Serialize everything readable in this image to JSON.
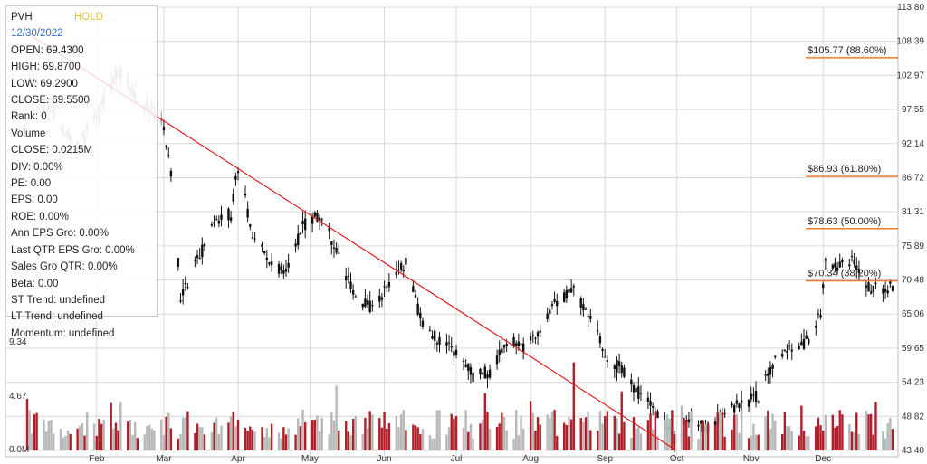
{
  "info_panel": {
    "ticker": "PVH",
    "rating": "HOLD",
    "date": "12/30/2022",
    "lines": [
      "OPEN: 69.4300",
      "HIGH: 69.8700",
      "LOW: 69.2900",
      "CLOSE: 69.5500",
      "Rank: 0",
      "Volume",
      "CLOSE: 0.0215M",
      "DIV: 0.00%",
      "PE: 0.00",
      "EPS: 0.00",
      "ROE: 0.00%",
      "Ann EPS Gro: 0.00%",
      "Last QTR EPS Gro: 0.00%",
      "Sales Gro QTR: 0.00%",
      "Beta: 0.00",
      "ST Trend: undefined",
      "LT Trend: undefined",
      "Momentum: undefined"
    ]
  },
  "chart_data": {
    "type": "candlestick",
    "title": "",
    "x_range": [
      "2022-01-03",
      "2022-12-30"
    ],
    "price_axis": {
      "ticks": [
        113.8,
        108.39,
        102.97,
        97.55,
        92.14,
        86.72,
        81.31,
        75.89,
        70.48,
        65.06,
        59.65,
        54.23,
        48.82,
        43.4
      ],
      "tick_labels": [
        "113.80",
        "108.39",
        "102.97",
        "97.55",
        "92.14",
        "86.72",
        "81.31",
        "75.89",
        "70.48",
        "65.06",
        "59.65",
        "54.23",
        "48.82",
        "43.40"
      ],
      "range": [
        43.4,
        113.8
      ]
    },
    "volume_axis": {
      "ticks": [
        0.0,
        4.67,
        9.34
      ],
      "tick_labels": [
        "0.0M",
        "4.67",
        "9.34"
      ],
      "unit": "M"
    },
    "month_labels": [
      "Feb",
      "Mar",
      "Apr",
      "May",
      "Jun",
      "Jul",
      "Aug",
      "Sep",
      "Oct",
      "Nov",
      "Dec"
    ],
    "fibonacci_levels": [
      {
        "price": 105.77,
        "label": "$105.77 (88.60%)",
        "color": "#f07a2e"
      },
      {
        "price": 86.93,
        "label": "$86.93 (61.80%)",
        "color": "#f07a2e"
      },
      {
        "price": 78.63,
        "label": "$78.63 (50.00%)",
        "color": "#f07a2e"
      },
      {
        "price": 70.34,
        "label": "$70.34 (38.20%)",
        "color": "#f07a2e"
      }
    ],
    "trend_line": {
      "start": {
        "date": "2022-01-03",
        "price": 109.7
      },
      "end": {
        "date": "2022-09-30",
        "price": 43.6
      },
      "color": "#e02020"
    },
    "price_anchors": [
      {
        "date": "2022-01-03",
        "price": 103.5
      },
      {
        "date": "2022-01-12",
        "price": 98.0
      },
      {
        "date": "2022-01-24",
        "price": 91.5
      },
      {
        "date": "2022-02-03",
        "price": 98.0
      },
      {
        "date": "2022-02-10",
        "price": 104.0
      },
      {
        "date": "2022-02-18",
        "price": 99.5
      },
      {
        "date": "2022-02-28",
        "price": 96.0
      },
      {
        "date": "2022-03-04",
        "price": 88.0
      },
      {
        "date": "2022-03-08",
        "price": 68.0
      },
      {
        "date": "2022-03-15",
        "price": 73.5
      },
      {
        "date": "2022-03-23",
        "price": 80.0
      },
      {
        "date": "2022-03-29",
        "price": 81.0
      },
      {
        "date": "2022-04-01",
        "price": 88.5
      },
      {
        "date": "2022-04-07",
        "price": 78.0
      },
      {
        "date": "2022-04-14",
        "price": 73.0
      },
      {
        "date": "2022-04-21",
        "price": 72.0
      },
      {
        "date": "2022-04-28",
        "price": 79.0
      },
      {
        "date": "2022-05-06",
        "price": 81.0
      },
      {
        "date": "2022-05-13",
        "price": 74.0
      },
      {
        "date": "2022-05-20",
        "price": 68.0
      },
      {
        "date": "2022-05-27",
        "price": 66.0
      },
      {
        "date": "2022-06-03",
        "price": 70.0
      },
      {
        "date": "2022-06-10",
        "price": 73.0
      },
      {
        "date": "2022-06-17",
        "price": 63.0
      },
      {
        "date": "2022-06-24",
        "price": 61.0
      },
      {
        "date": "2022-07-01",
        "price": 59.0
      },
      {
        "date": "2022-07-08",
        "price": 55.0
      },
      {
        "date": "2022-07-15",
        "price": 56.0
      },
      {
        "date": "2022-07-22",
        "price": 61.0
      },
      {
        "date": "2022-07-29",
        "price": 60.0
      },
      {
        "date": "2022-08-05",
        "price": 63.0
      },
      {
        "date": "2022-08-12",
        "price": 67.0
      },
      {
        "date": "2022-08-19",
        "price": 69.0
      },
      {
        "date": "2022-08-26",
        "price": 64.0
      },
      {
        "date": "2022-09-02",
        "price": 58.0
      },
      {
        "date": "2022-09-09",
        "price": 56.0
      },
      {
        "date": "2022-09-16",
        "price": 52.0
      },
      {
        "date": "2022-09-23",
        "price": 49.0
      },
      {
        "date": "2022-09-30",
        "price": 45.5
      },
      {
        "date": "2022-10-07",
        "price": 48.5
      },
      {
        "date": "2022-10-14",
        "price": 47.0
      },
      {
        "date": "2022-10-21",
        "price": 49.0
      },
      {
        "date": "2022-10-28",
        "price": 51.0
      },
      {
        "date": "2022-11-04",
        "price": 52.0
      },
      {
        "date": "2022-11-11",
        "price": 57.5
      },
      {
        "date": "2022-11-18",
        "price": 59.5
      },
      {
        "date": "2022-11-25",
        "price": 61.0
      },
      {
        "date": "2022-11-30",
        "price": 65.5
      },
      {
        "date": "2022-12-02",
        "price": 73.0
      },
      {
        "date": "2022-12-09",
        "price": 72.5
      },
      {
        "date": "2022-12-14",
        "price": 73.5
      },
      {
        "date": "2022-12-20",
        "price": 69.0
      },
      {
        "date": "2022-12-30",
        "price": 69.55
      }
    ],
    "grid": true,
    "colors": {
      "up": "#111111",
      "down": "#111111",
      "history": "#9a9a9a",
      "volume_up": "#b8b8b8",
      "volume_down": "#b0202a",
      "grid": "#d9d9d9"
    }
  }
}
